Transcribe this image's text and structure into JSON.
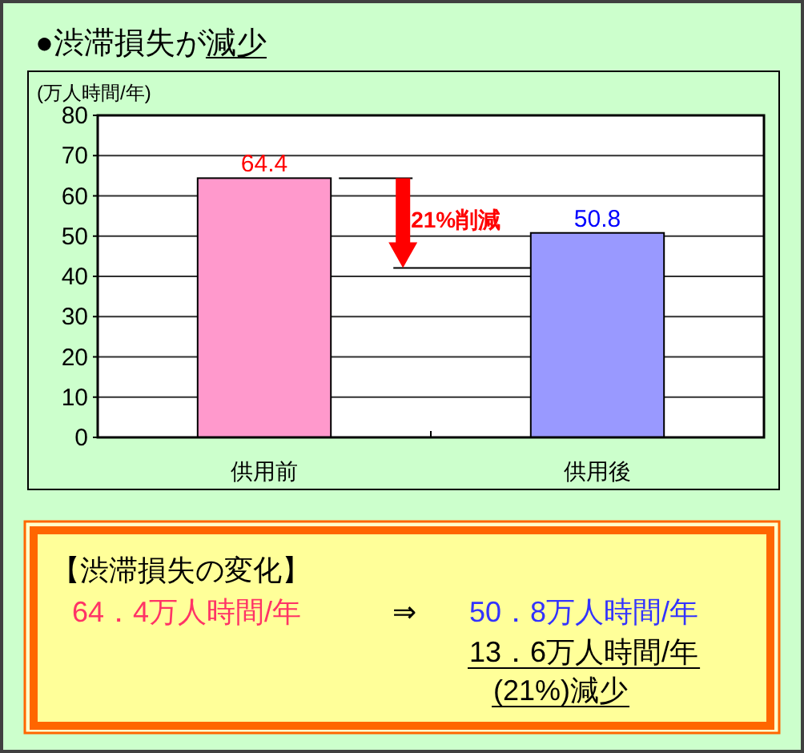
{
  "chart_data": [
    {
      "type": "bar",
      "title": "●渋滞損失が減少",
      "ylabel": "(万人時間/年)",
      "categories": [
        "供用前",
        "供用後"
      ],
      "values": [
        64.4,
        50.8
      ],
      "colors": [
        "#ff99cc",
        "#9999ff"
      ],
      "ylim": [
        0,
        80
      ],
      "yticks": [
        0,
        10,
        20,
        30,
        40,
        50,
        60,
        70,
        80
      ],
      "grid": "y",
      "data_labels": true,
      "annotations": [
        "21%削減"
      ]
    },
    {
      "type": "other",
      "title": "【渋滞損失の変化】",
      "annotations": [
        "64．4万人時間/年",
        "⇒",
        "50．8万人時間/年",
        "13．6万人時間/年",
        "(21%)減少"
      ]
    }
  ]
}
